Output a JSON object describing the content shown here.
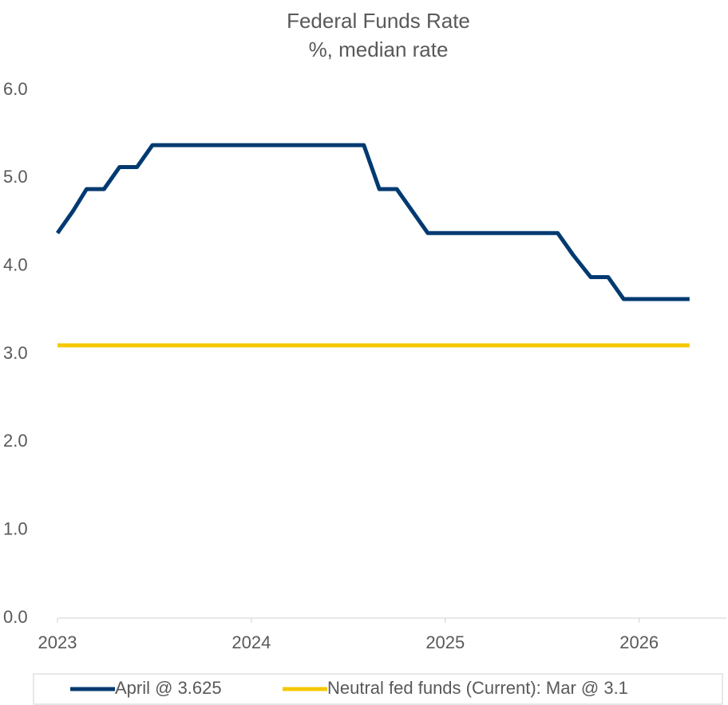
{
  "chart_data": {
    "type": "line",
    "title": "Federal Funds Rate",
    "subtitle": "%, median rate",
    "x": [
      2023,
      2023.08,
      2023.15,
      2023.24,
      2023.32,
      2023.41,
      2023.49,
      2024.58,
      2024.66,
      2024.75,
      2024.83,
      2024.91,
      2025.58,
      2025.66,
      2025.75,
      2025.84,
      2025.92,
      2026.26
    ],
    "series": [
      {
        "name": "April @ 3.625",
        "color": "#003a70",
        "values": [
          4.375,
          4.625,
          4.875,
          4.875,
          5.125,
          5.125,
          5.375,
          5.375,
          4.875,
          4.875,
          4.625,
          4.375,
          4.375,
          4.125,
          3.875,
          3.875,
          3.625,
          3.625
        ]
      },
      {
        "name": "Neutral fed funds (Current): Mar @ 3.1",
        "color": "#f5c800",
        "values": [
          3.1,
          3.1,
          3.1,
          3.1,
          3.1,
          3.1,
          3.1,
          3.1,
          3.1,
          3.1,
          3.1,
          3.1,
          3.1,
          3.1,
          3.1,
          3.1,
          3.1,
          3.1
        ]
      }
    ],
    "xlim": [
      2023,
      2026.45
    ],
    "xticks": [
      2023,
      2024,
      2025,
      2026
    ],
    "ylim": [
      0,
      6
    ],
    "yticks": [
      {
        "value": 0,
        "label": "0.0"
      },
      {
        "value": 1,
        "label": "1.0"
      },
      {
        "value": 2,
        "label": "2.0"
      },
      {
        "value": 3,
        "label": "3.0"
      },
      {
        "value": 4,
        "label": "4.0"
      },
      {
        "value": 5,
        "label": "5.0"
      },
      {
        "value": 6,
        "label": "6.0"
      }
    ],
    "grid": false,
    "legend": "bottom"
  }
}
